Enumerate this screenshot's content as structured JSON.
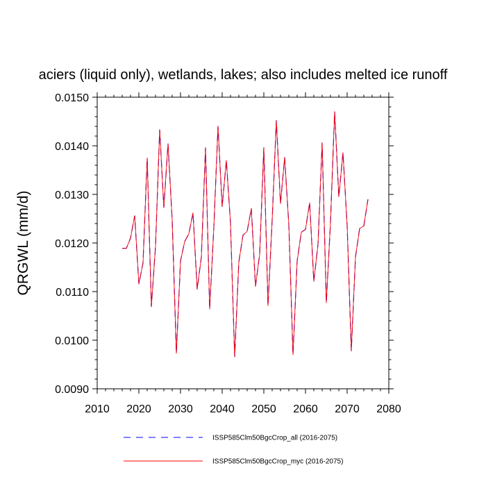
{
  "chart_data": {
    "type": "line",
    "title": "aciers (liquid only), wetlands, lakes; also includes melted ice runoff",
    "xlabel": "",
    "ylabel": "QRGWL  (mm/d)",
    "xlim": [
      2010,
      2080
    ],
    "ylim": [
      0.009,
      0.015
    ],
    "x_ticks": [
      "2010",
      "2020",
      "2030",
      "2040",
      "2050",
      "2060",
      "2070",
      "2080"
    ],
    "y_ticks": [
      "0.0090",
      "0.0100",
      "0.0110",
      "0.0120",
      "0.0130",
      "0.0140",
      "0.0150"
    ],
    "x": [
      2016,
      2017,
      2018,
      2019,
      2020,
      2021,
      2022,
      2023,
      2024,
      2025,
      2026,
      2027,
      2028,
      2029,
      2030,
      2031,
      2032,
      2033,
      2034,
      2035,
      2036,
      2037,
      2038,
      2039,
      2040,
      2041,
      2042,
      2043,
      2044,
      2045,
      2046,
      2047,
      2048,
      2049,
      2050,
      2051,
      2052,
      2053,
      2054,
      2055,
      2056,
      2057,
      2058,
      2059,
      2060,
      2061,
      2062,
      2063,
      2064,
      2065,
      2066,
      2067,
      2068,
      2069,
      2070,
      2071,
      2072,
      2073,
      2074,
      2075
    ],
    "series": [
      {
        "name": "ISSP585Clm50BgcCrop_all (2016-2075)",
        "color": "#0000ff",
        "dash": "dashed",
        "values": [
          0.01189,
          0.01189,
          0.0121,
          0.01256,
          0.01116,
          0.01159,
          0.01375,
          0.01069,
          0.01193,
          0.01433,
          0.01273,
          0.01404,
          0.01247,
          0.00973,
          0.01163,
          0.01203,
          0.01219,
          0.01262,
          0.01105,
          0.01171,
          0.01396,
          0.01064,
          0.01232,
          0.0144,
          0.01275,
          0.0137,
          0.0124,
          0.00966,
          0.01161,
          0.01216,
          0.01224,
          0.01271,
          0.01111,
          0.01177,
          0.01396,
          0.01071,
          0.01247,
          0.01452,
          0.01281,
          0.01376,
          0.01238,
          0.0097,
          0.01163,
          0.01222,
          0.01228,
          0.01283,
          0.01121,
          0.01197,
          0.01406,
          0.01077,
          0.01242,
          0.0147,
          0.01295,
          0.01386,
          0.01236,
          0.00978,
          0.01171,
          0.0123,
          0.01235,
          0.0129
        ]
      },
      {
        "name": "ISSP585Clm50BgcCrop_myc (2016-2075)",
        "color": "#ff0000",
        "dash": "solid",
        "values": [
          0.01189,
          0.01189,
          0.0121,
          0.01256,
          0.01116,
          0.01159,
          0.01375,
          0.01069,
          0.01193,
          0.01433,
          0.01273,
          0.01404,
          0.01247,
          0.00973,
          0.01163,
          0.01203,
          0.01219,
          0.01262,
          0.01105,
          0.01171,
          0.01396,
          0.01064,
          0.01232,
          0.0144,
          0.01275,
          0.0137,
          0.0124,
          0.00966,
          0.01161,
          0.01216,
          0.01224,
          0.01271,
          0.01111,
          0.01177,
          0.01396,
          0.01071,
          0.01247,
          0.01452,
          0.01281,
          0.01376,
          0.01238,
          0.0097,
          0.01163,
          0.01222,
          0.01228,
          0.01283,
          0.01121,
          0.01197,
          0.01406,
          0.01077,
          0.01242,
          0.0147,
          0.01295,
          0.01386,
          0.01236,
          0.00978,
          0.01171,
          0.0123,
          0.01235,
          0.0129
        ]
      }
    ],
    "legend_position": "bottom",
    "grid": false
  }
}
